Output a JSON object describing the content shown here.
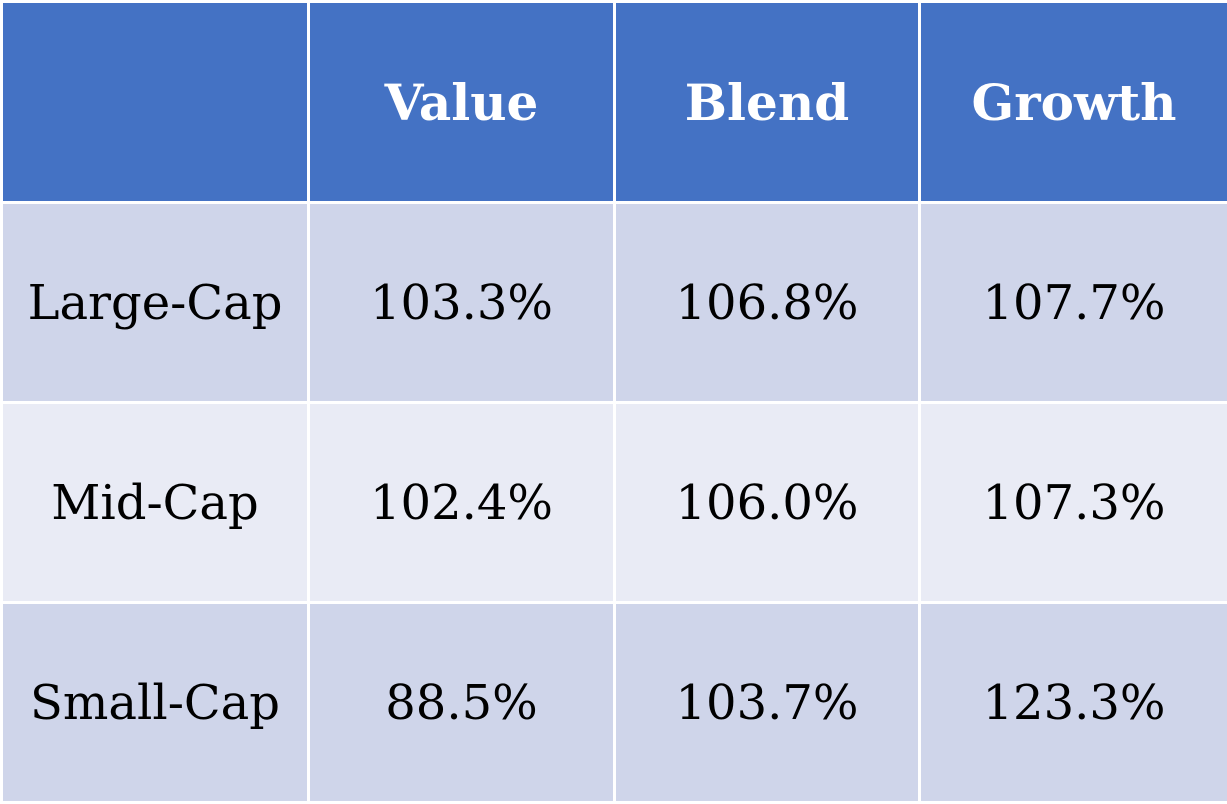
{
  "chart_data": {
    "type": "table",
    "corner_label": "",
    "columns": [
      "Value",
      "Blend",
      "Growth"
    ],
    "rows": [
      {
        "label": "Large-Cap",
        "values": [
          "103.3%",
          "106.8%",
          "107.7%"
        ]
      },
      {
        "label": "Mid-Cap",
        "values": [
          "102.4%",
          "106.0%",
          "107.3%"
        ]
      },
      {
        "label": "Small-Cap",
        "values": [
          "88.5%",
          "103.7%",
          "123.3%"
        ]
      }
    ],
    "colors": {
      "header_bg": "#4472c4",
      "header_text": "#ffffff",
      "row_band_1": "#cfd5ea",
      "row_band_2": "#e9ebf5",
      "grid_line": "#ffffff"
    }
  }
}
